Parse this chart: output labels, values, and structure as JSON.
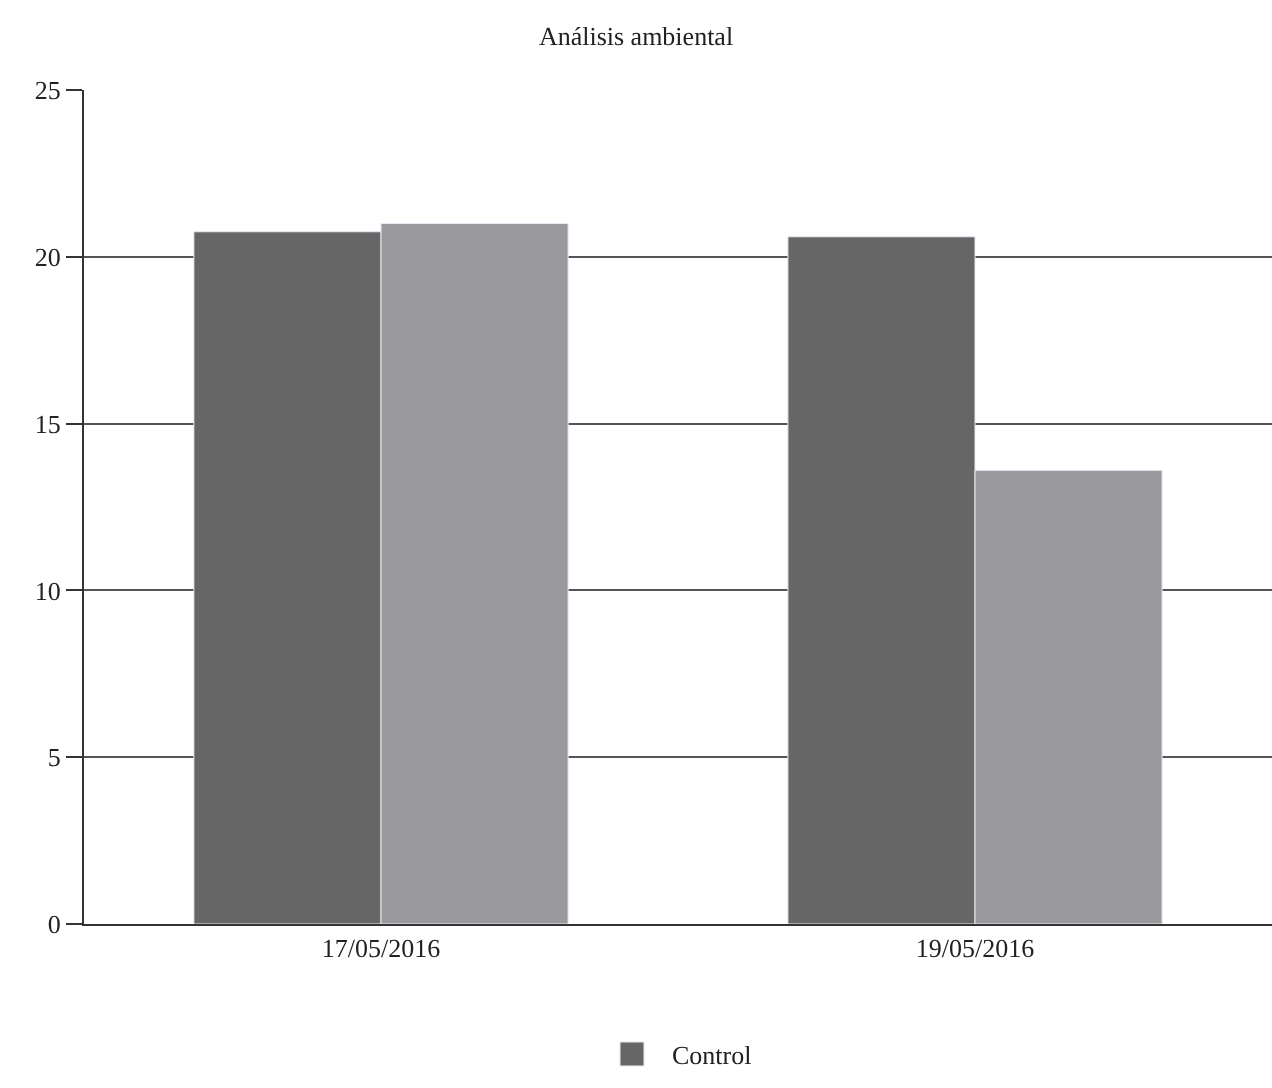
{
  "chart_data": {
    "type": "bar",
    "title": "Análisis ambiental",
    "categories": [
      "17/05/2016",
      "19/05/2016"
    ],
    "series": [
      {
        "name": "Control",
        "color": "#666666",
        "values": [
          20.75,
          20.6
        ]
      },
      {
        "color": "#9a9a9c",
        "values": [
          21.0,
          13.6
        ]
      }
    ],
    "ylim": [
      0,
      25
    ],
    "yticks": [
      0,
      5,
      10,
      15,
      20,
      25
    ],
    "grid": "y",
    "legend": "bottom"
  }
}
